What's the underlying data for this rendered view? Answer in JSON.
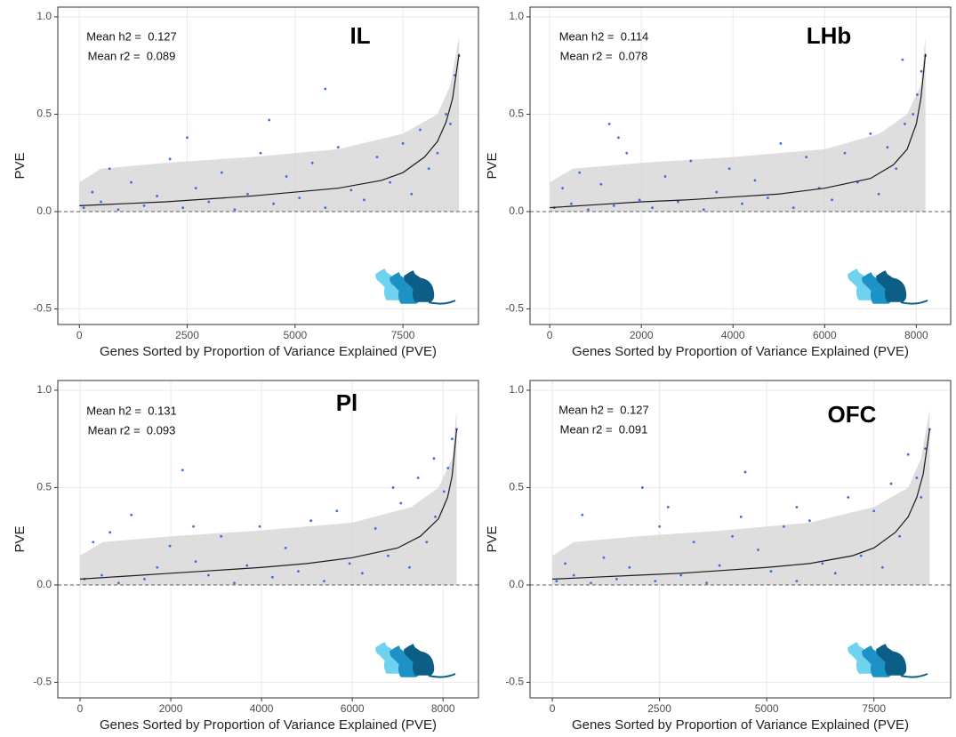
{
  "chart_data": [
    {
      "type": "scatter",
      "title": "IL",
      "annotations": [
        "Mean h2 =  0.127",
        "Mean r2 =  0.089"
      ],
      "x_label": "Genes Sorted by Proportion of Variance Explained (PVE)",
      "y_label": "PVE",
      "xlim": [
        -500,
        9250
      ],
      "ylim": [
        -0.58,
        1.05
      ],
      "xticks": [
        0,
        2500,
        5000,
        7500
      ],
      "yticks": [
        {
          "value": -0.5,
          "label": "-0.5"
        },
        {
          "value": 0,
          "label": "0.0"
        },
        0.5,
        {
          "value": 1,
          "label": "1.0"
        }
      ],
      "grid": true,
      "hline": 0,
      "series": [
        {
          "mode": "band",
          "color": "#d6d6d6",
          "x": [
            0,
            500,
            2000,
            4000,
            6000,
            7500,
            8300,
            8600,
            8800
          ],
          "values": [
            0.15,
            0.22,
            0.25,
            0.28,
            0.32,
            0.4,
            0.5,
            0.65,
            0.9
          ]
        },
        {
          "mode": "points",
          "color": "#3a6fd8",
          "x": [
            100,
            300,
            500,
            700,
            900,
            1200,
            1500,
            1800,
            2100,
            2400,
            2700,
            3000,
            3300,
            3600,
            3900,
            4200,
            4500,
            4800,
            5100,
            5400,
            5700,
            6000,
            6300,
            6600,
            6900,
            7200,
            7500,
            7700,
            7900,
            8100,
            8300,
            8500,
            8600,
            8700,
            8800,
            5700,
            2500,
            4400
          ],
          "values": [
            0.02,
            0.1,
            0.05,
            0.22,
            0.01,
            0.15,
            0.03,
            0.08,
            0.27,
            0.02,
            0.12,
            0.05,
            0.2,
            0.01,
            0.09,
            0.3,
            0.04,
            0.18,
            0.07,
            0.25,
            0.02,
            0.33,
            0.11,
            0.06,
            0.28,
            0.15,
            0.35,
            0.09,
            0.42,
            0.22,
            0.3,
            0.5,
            0.45,
            0.7,
            0.8,
            0.63,
            0.38,
            0.47
          ]
        },
        {
          "mode": "line",
          "color": "#1a1a1a",
          "x": [
            0,
            1000,
            2000,
            3000,
            4000,
            5000,
            6000,
            7000,
            7500,
            8000,
            8300,
            8500,
            8650,
            8800
          ],
          "values": [
            0.03,
            0.04,
            0.05,
            0.065,
            0.08,
            0.1,
            0.12,
            0.16,
            0.2,
            0.28,
            0.36,
            0.46,
            0.58,
            0.81
          ]
        }
      ]
    },
    {
      "type": "scatter",
      "title": "LHb",
      "annotations": [
        "Mean h2 =  0.114",
        "Mean r2 =  0.078"
      ],
      "x_label": "Genes Sorted by Proportion of Variance Explained (PVE)",
      "y_label": "PVE",
      "xlim": [
        -430,
        8750
      ],
      "ylim": [
        -0.58,
        1.05
      ],
      "xticks": [
        0,
        2000,
        4000,
        6000,
        8000
      ],
      "yticks": [
        {
          "value": -0.5,
          "label": "-0.5"
        },
        {
          "value": 0,
          "label": "0.0"
        },
        0.5,
        {
          "value": 1,
          "label": "1.0"
        }
      ],
      "grid": true,
      "hline": 0,
      "series": [
        {
          "mode": "band",
          "color": "#d6d6d6",
          "x": [
            0,
            500,
            2000,
            4000,
            6000,
            7200,
            7800,
            8100,
            8200
          ],
          "values": [
            0.15,
            0.22,
            0.25,
            0.28,
            0.32,
            0.4,
            0.5,
            0.65,
            0.9
          ]
        },
        {
          "mode": "points",
          "color": "#3a6fd8",
          "x": [
            100,
            280,
            470,
            650,
            840,
            1120,
            1400,
            1680,
            1960,
            2240,
            2520,
            2800,
            3080,
            3360,
            3640,
            3920,
            4200,
            4480,
            4760,
            5040,
            5320,
            5600,
            5880,
            6160,
            6440,
            6720,
            7000,
            7180,
            7370,
            7560,
            7750,
            7930,
            8020,
            8110,
            8200,
            1300,
            1500,
            7700
          ],
          "values": [
            0.02,
            0.12,
            0.04,
            0.2,
            0.01,
            0.14,
            0.03,
            0.3,
            0.06,
            0.02,
            0.18,
            0.05,
            0.26,
            0.01,
            0.1,
            0.22,
            0.04,
            0.16,
            0.07,
            0.35,
            0.02,
            0.28,
            0.12,
            0.06,
            0.3,
            0.15,
            0.4,
            0.09,
            0.33,
            0.22,
            0.45,
            0.5,
            0.6,
            0.72,
            0.8,
            0.45,
            0.38,
            0.78
          ]
        },
        {
          "mode": "line",
          "color": "#1a1a1a",
          "x": [
            0,
            1000,
            2000,
            3000,
            4000,
            5000,
            6000,
            7000,
            7500,
            7800,
            8000,
            8100,
            8200
          ],
          "values": [
            0.02,
            0.035,
            0.05,
            0.06,
            0.075,
            0.09,
            0.12,
            0.17,
            0.24,
            0.32,
            0.45,
            0.58,
            0.81
          ]
        }
      ]
    },
    {
      "type": "scatter",
      "title": "Pl",
      "annotations": [
        "Mean h2 =  0.131",
        "Mean r2 =  0.093"
      ],
      "x_label": "Genes Sorted by Proportion of Variance Explained (PVE)",
      "y_label": "PVE",
      "xlim": [
        -490,
        8780
      ],
      "ylim": [
        -0.58,
        1.05
      ],
      "xticks": [
        0,
        2000,
        4000,
        6000,
        8000
      ],
      "yticks": [
        {
          "value": -0.5,
          "label": "-0.5"
        },
        {
          "value": 0,
          "label": "0.0"
        },
        0.5,
        {
          "value": 1,
          "label": "1.0"
        }
      ],
      "grid": true,
      "hline": 0,
      "series": [
        {
          "mode": "band",
          "color": "#d6d6d6",
          "x": [
            0,
            500,
            2000,
            4000,
            6000,
            7300,
            7900,
            8200,
            8300
          ],
          "values": [
            0.15,
            0.22,
            0.25,
            0.28,
            0.32,
            0.4,
            0.5,
            0.65,
            0.9
          ]
        },
        {
          "mode": "points",
          "color": "#3a6fd8",
          "x": [
            100,
            290,
            480,
            660,
            850,
            1130,
            1420,
            1700,
            1980,
            2260,
            2550,
            2830,
            3110,
            3400,
            3680,
            3960,
            4240,
            4530,
            4810,
            5090,
            5380,
            5660,
            5940,
            6220,
            6510,
            6790,
            7070,
            7260,
            7450,
            7640,
            7830,
            8020,
            8110,
            8200,
            8300,
            2500,
            7800,
            6900
          ],
          "values": [
            0.03,
            0.22,
            0.05,
            0.27,
            0.01,
            0.36,
            0.03,
            0.09,
            0.2,
            0.59,
            0.12,
            0.05,
            0.25,
            0.01,
            0.1,
            0.3,
            0.04,
            0.19,
            0.07,
            0.33,
            0.02,
            0.38,
            0.11,
            0.06,
            0.29,
            0.15,
            0.42,
            0.09,
            0.55,
            0.22,
            0.35,
            0.48,
            0.6,
            0.75,
            0.8,
            0.3,
            0.65,
            0.5
          ]
        },
        {
          "mode": "line",
          "color": "#1a1a1a",
          "x": [
            0,
            1000,
            2000,
            3000,
            4000,
            5000,
            6000,
            7000,
            7500,
            7900,
            8100,
            8200,
            8300
          ],
          "values": [
            0.03,
            0.045,
            0.06,
            0.075,
            0.09,
            0.11,
            0.14,
            0.19,
            0.25,
            0.34,
            0.45,
            0.56,
            0.8
          ]
        }
      ]
    },
    {
      "type": "scatter",
      "title": "OFC",
      "annotations": [
        "Mean h2 =  0.127",
        "Mean r2 =  0.091"
      ],
      "x_label": "Genes Sorted by Proportion of Variance Explained (PVE)",
      "y_label": "PVE",
      "xlim": [
        -520,
        9290
      ],
      "ylim": [
        -0.58,
        1.05
      ],
      "xticks": [
        0,
        2500,
        5000,
        7500
      ],
      "yticks": [
        {
          "value": -0.5,
          "label": "-0.5"
        },
        {
          "value": 0,
          "label": "0.0"
        },
        0.5,
        {
          "value": 1,
          "label": "1.0"
        }
      ],
      "grid": true,
      "hline": 0,
      "series": [
        {
          "mode": "band",
          "color": "#d6d6d6",
          "x": [
            0,
            500,
            2000,
            4000,
            6000,
            7500,
            8300,
            8600,
            8800
          ],
          "values": [
            0.15,
            0.22,
            0.25,
            0.28,
            0.32,
            0.4,
            0.5,
            0.65,
            0.9
          ]
        },
        {
          "mode": "points",
          "color": "#3a6fd8",
          "x": [
            100,
            300,
            500,
            700,
            900,
            1200,
            1500,
            1800,
            2100,
            2400,
            2700,
            3000,
            3300,
            3600,
            3900,
            4200,
            4500,
            4800,
            5100,
            5400,
            5700,
            6000,
            6300,
            6600,
            6900,
            7200,
            7500,
            7700,
            7900,
            8100,
            8300,
            8500,
            8600,
            8700,
            8800,
            5700,
            2500,
            4400
          ],
          "values": [
            0.02,
            0.11,
            0.05,
            0.36,
            0.01,
            0.14,
            0.03,
            0.09,
            0.5,
            0.02,
            0.4,
            0.05,
            0.22,
            0.01,
            0.1,
            0.25,
            0.58,
            0.18,
            0.07,
            0.3,
            0.02,
            0.33,
            0.11,
            0.06,
            0.45,
            0.15,
            0.38,
            0.09,
            0.52,
            0.25,
            0.67,
            0.55,
            0.45,
            0.7,
            0.8,
            0.4,
            0.3,
            0.35
          ]
        },
        {
          "mode": "line",
          "color": "#1a1a1a",
          "x": [
            0,
            1000,
            2000,
            3000,
            4000,
            5000,
            6000,
            7000,
            7500,
            8000,
            8300,
            8500,
            8650,
            8800
          ],
          "values": [
            0.03,
            0.04,
            0.05,
            0.06,
            0.075,
            0.09,
            0.11,
            0.15,
            0.19,
            0.27,
            0.35,
            0.45,
            0.57,
            0.8
          ]
        }
      ]
    }
  ]
}
